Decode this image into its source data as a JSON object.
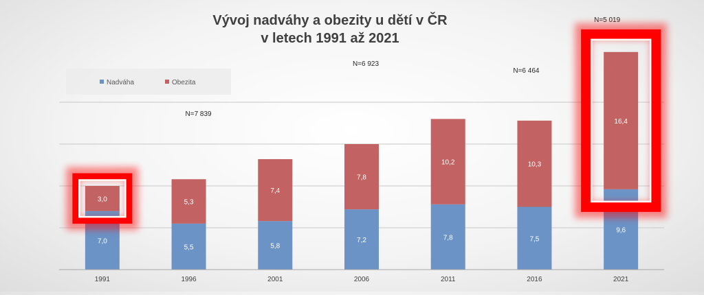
{
  "chart_data": {
    "type": "bar",
    "stacked": true,
    "title": "Vývoj nadváhy a obezity u dětí v ČR",
    "subtitle": "v letech 1991 až 2021",
    "categories": [
      "1991",
      "1996",
      "2001",
      "2006",
      "2011",
      "2016",
      "2021"
    ],
    "series": [
      {
        "name": "Nadváha",
        "color": "#6b93c6",
        "values": [
          7.0,
          5.5,
          5.8,
          7.2,
          7.8,
          7.5,
          9.6
        ],
        "labels": [
          "7,0",
          "5,5",
          "5,8",
          "7,2",
          "7,8",
          "7,5",
          "9,6"
        ]
      },
      {
        "name": "Obezita",
        "color": "#c36262",
        "values": [
          3.0,
          5.3,
          7.4,
          7.8,
          10.2,
          10.3,
          16.4
        ],
        "labels": [
          "3,0",
          "5,3",
          "7,4",
          "7,8",
          "10,2",
          "10,3",
          "16,4"
        ]
      }
    ],
    "ylim": [
      0,
      25
    ],
    "grid": true,
    "legend_position": "top-left",
    "annotations": [
      {
        "category": "1996",
        "text": "N=7 839"
      },
      {
        "category": "2006",
        "text": "N=6 923"
      },
      {
        "category": "2016",
        "text": "N=6 464"
      },
      {
        "category": "2021",
        "text": "N=5 019"
      }
    ],
    "highlighted_categories": [
      "1991",
      "2021"
    ],
    "highlight_color": "#ff0000"
  }
}
